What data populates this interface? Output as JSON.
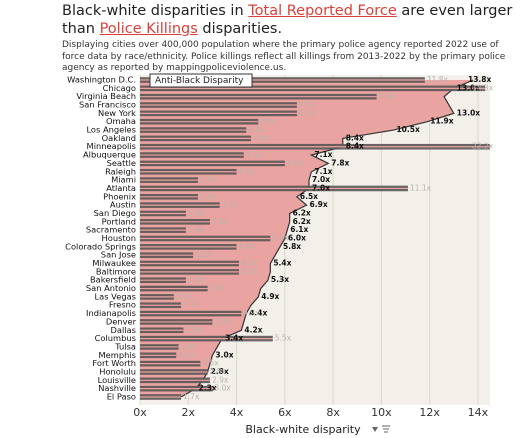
{
  "header": {
    "title": [
      "Black-white disparities in",
      "Total Reported Force",
      "are even larger than",
      "Police Killings",
      "disparities."
    ],
    "subtitle": "Displaying cities over 400,000 population where the primary police agency reported 2022 use of force data by race/ethnicity. Police killings reflect all killings from 2013-2022 by the primary police agency as reported by mappingpoliceviolence.us."
  },
  "chart_data": {
    "type": "bar",
    "x_label": "Black-white disparity",
    "categories": [
      "Washington D.C.",
      "Chicago",
      "Virginia Beach",
      "San Francisco",
      "New York",
      "Omaha",
      "Los Angeles",
      "Oakland",
      "Minneapolis",
      "Albuquerque",
      "Seattle",
      "Raleigh",
      "Miami",
      "Atlanta",
      "Phoenix",
      "Austin",
      "San Diego",
      "Portland",
      "Sacramento",
      "Houston",
      "Colorado Springs",
      "San Jose",
      "Milwaukee",
      "Baltimore",
      "Bakersfield",
      "San Antonio",
      "Las Vegas",
      "Fresno",
      "Indianapolis",
      "Denver",
      "Dallas",
      "Columbus",
      "Tulsa",
      "Memphis",
      "Fort Worth",
      "Honolulu",
      "Louisville",
      "Nashville",
      "El Paso"
    ],
    "series": [
      {
        "name": "Anti-Black Disparity",
        "type": "area",
        "color": "#e9a3a0",
        "values": [
          13.8,
          13.0,
          12.6,
          12.8,
          13.0,
          11.9,
          10.5,
          8.4,
          8.4,
          7.1,
          7.8,
          7.1,
          7.0,
          7.0,
          6.5,
          6.9,
          6.2,
          6.2,
          6.1,
          6.0,
          5.8,
          5.6,
          5.4,
          5.4,
          5.3,
          5.0,
          4.9,
          4.6,
          4.4,
          4.3,
          4.2,
          3.4,
          3.2,
          3.0,
          2.9,
          2.8,
          2.6,
          2.3,
          1.7
        ],
        "value_labels": [
          "13.8x",
          "13.0x",
          null,
          null,
          "13.0x",
          "11.9x",
          "10.5x",
          "8.4x",
          "8.4x",
          "7.1x",
          "7.8x",
          "7.1x",
          "7.0x",
          "7.0x",
          "6.5x",
          "6.9x",
          "6.2x",
          "6.2x",
          "6.1x",
          "6.0x",
          "5.8x",
          null,
          "5.4x",
          null,
          "5.3x",
          null,
          "4.9x",
          null,
          "4.4x",
          null,
          "4.2x",
          "3.4x",
          null,
          "3.0x",
          null,
          "2.8x",
          null,
          "2.3x",
          null
        ]
      },
      {
        "type": "bar",
        "color": "#5a5555",
        "values": [
          11.8,
          14.3,
          9.8,
          6.5,
          6.5,
          4.9,
          4.4,
          4.6,
          22.2,
          4.3,
          6.0,
          4.0,
          2.4,
          11.1,
          2.4,
          3.3,
          1.9,
          2.9,
          1.9,
          5.4,
          4.0,
          2.2,
          4.1,
          4.1,
          1.9,
          2.8,
          1.4,
          1.7,
          4.2,
          3.0,
          1.8,
          5.5,
          1.6,
          1.5,
          2.5,
          2.8,
          2.9,
          3.0,
          1.7
        ],
        "value_labels": [
          "11.8x",
          "14.3x",
          "9.8x",
          "6.5x",
          "6.5x",
          "4.9x",
          "4.4x",
          "4.6x",
          "22.2x",
          "4.3x",
          "6.0x",
          "4.0x",
          "2.4x",
          "11.1x",
          "2.4x",
          "3.3x",
          "1.9x",
          "2.9x",
          "1.9x",
          "5.4x",
          "4.0x",
          "2.2x",
          "4.1x",
          "4.1x",
          "1.9x",
          "2.8x",
          "1.4x",
          "1.7x",
          "4.2x",
          "3.0x",
          "1.8x",
          "5.5x",
          "1.6x",
          "1.5x",
          "2.5x",
          "2.8x",
          "2.9x",
          "3.0x",
          "1.7x"
        ]
      }
    ],
    "xlim": [
      0,
      14.5
    ],
    "xticks": [
      {
        "value": 0,
        "label": "0x"
      },
      {
        "value": 2,
        "label": "2x"
      },
      {
        "value": 4,
        "label": "4x"
      },
      {
        "value": 6,
        "label": "6x"
      },
      {
        "value": 8,
        "label": "8x"
      },
      {
        "value": 10,
        "label": "10x"
      },
      {
        "value": 12,
        "label": "12x"
      },
      {
        "value": 14,
        "label": "14x"
      }
    ],
    "grid": true
  }
}
